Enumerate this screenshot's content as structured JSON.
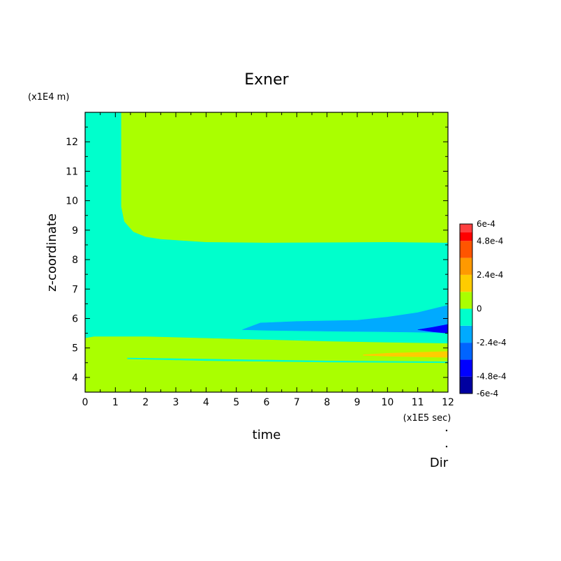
{
  "chart_data": {
    "type": "heatmap",
    "title": "Exner",
    "xlabel": "time",
    "ylabel": "z-coordinate",
    "x_unit": "(x1E5 sec)",
    "y_unit": "(x1E4 m)",
    "footer_label": "Dir",
    "xlim": [
      0,
      12
    ],
    "ylim": [
      3.5,
      13
    ],
    "x_ticks": [
      "0",
      "1",
      "2",
      "3",
      "4",
      "5",
      "6",
      "7",
      "8",
      "9",
      "10",
      "11",
      "12"
    ],
    "y_ticks": [
      "4",
      "5",
      "6",
      "7",
      "8",
      "9",
      "10",
      "11",
      "12"
    ],
    "colorbar": {
      "vmin": -0.0006,
      "vmax": 0.0006,
      "tick_labels": [
        "6e-4",
        "4.8e-4",
        "2.4e-4",
        "0",
        "-2.4e-4",
        "-4.8e-4",
        "-6e-4"
      ],
      "tick_values": [
        0.0006,
        0.00048,
        0.00024,
        0,
        -0.00024,
        -0.00048,
        -0.0006
      ],
      "colors": [
        {
          "from": -0.0006,
          "to": -0.00048,
          "color": "#0000a0"
        },
        {
          "from": -0.00048,
          "to": -0.00036,
          "color": "#0000ff"
        },
        {
          "from": -0.00036,
          "to": -0.00024,
          "color": "#0064ff"
        },
        {
          "from": -0.00024,
          "to": -0.00012,
          "color": "#00aaff"
        },
        {
          "from": -0.00012,
          "to": 0,
          "color": "#00ffcc"
        },
        {
          "from": 0,
          "to": 0.00012,
          "color": "#aaff00"
        },
        {
          "from": 0.00012,
          "to": 0.00024,
          "color": "#ffcc00"
        },
        {
          "from": 0.00024,
          "to": 0.00036,
          "color": "#ff9900"
        },
        {
          "from": 0.00036,
          "to": 0.00048,
          "color": "#ff5500"
        },
        {
          "from": 0.00048,
          "to": 0.0006,
          "color": "#ff0000"
        },
        {
          "from": 0.00054,
          "to": 0.0006,
          "color": "#ff4040"
        }
      ]
    },
    "regions": [
      {
        "name": "positive-upper",
        "level": 6e-05,
        "color": "#aaff00",
        "polygon": [
          [
            1.2,
            13
          ],
          [
            12,
            13
          ],
          [
            12,
            8.58
          ],
          [
            10,
            8.6
          ],
          [
            6,
            8.58
          ],
          [
            4,
            8.6
          ],
          [
            2.5,
            8.7
          ],
          [
            2,
            8.78
          ],
          [
            1.6,
            8.95
          ],
          [
            1.3,
            9.3
          ],
          [
            1.2,
            9.8
          ]
        ]
      },
      {
        "name": "positive-lower",
        "level": 6e-05,
        "color": "#aaff00",
        "polygon": [
          [
            0,
            5.33
          ],
          [
            0.3,
            5.38
          ],
          [
            2,
            5.38
          ],
          [
            5,
            5.3
          ],
          [
            8,
            5.22
          ],
          [
            10,
            5.18
          ],
          [
            12,
            5.15
          ],
          [
            12,
            3.5
          ],
          [
            0,
            3.5
          ]
        ]
      },
      {
        "name": "negative-weak-lower-streak",
        "level": -6e-05,
        "color": "#00ffcc",
        "polygon": [
          [
            1.4,
            4.66
          ],
          [
            4,
            4.62
          ],
          [
            8,
            4.56
          ],
          [
            12,
            4.53
          ],
          [
            12,
            4.5
          ],
          [
            8,
            4.52
          ],
          [
            4,
            4.57
          ],
          [
            1.4,
            4.63
          ]
        ]
      },
      {
        "name": "negative-medium",
        "level": -0.00018,
        "color": "#00aaff",
        "polygon": [
          [
            5.2,
            5.62
          ],
          [
            5.8,
            5.85
          ],
          [
            7,
            5.9
          ],
          [
            9,
            5.94
          ],
          [
            10,
            6.05
          ],
          [
            11,
            6.2
          ],
          [
            12,
            6.45
          ],
          [
            12,
            5.52
          ],
          [
            10,
            5.55
          ],
          [
            8,
            5.57
          ],
          [
            6,
            5.6
          ]
        ]
      },
      {
        "name": "negative-strong",
        "level": -0.00042,
        "color": "#0000ff",
        "polygon": [
          [
            11,
            5.62
          ],
          [
            11.5,
            5.7
          ],
          [
            12,
            5.8
          ],
          [
            12,
            5.5
          ],
          [
            11.5,
            5.55
          ]
        ]
      },
      {
        "name": "positive-medium",
        "level": 0.00018,
        "color": "#ffcc00",
        "polygon": [
          [
            9.2,
            4.77
          ],
          [
            10,
            4.82
          ],
          [
            11,
            4.85
          ],
          [
            12,
            4.88
          ],
          [
            12,
            4.68
          ],
          [
            11,
            4.7
          ],
          [
            10,
            4.72
          ],
          [
            9.2,
            4.75
          ]
        ]
      }
    ],
    "background_level": -6e-05,
    "background_color": "#00ffcc"
  }
}
